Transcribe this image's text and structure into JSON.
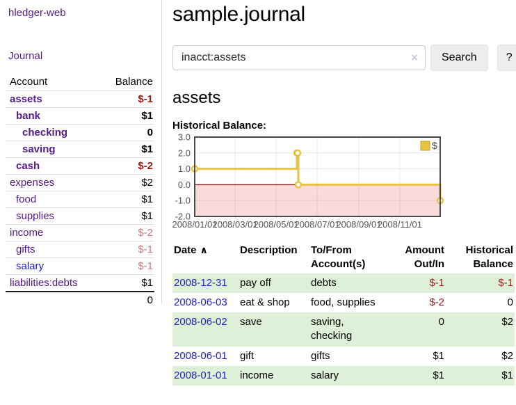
{
  "colors": {
    "purple": "#551a8b",
    "blue": "#2222cc",
    "red": "#9b1b1b",
    "muted_red": "#c47a7a",
    "row_green": "#dff0d8",
    "gold": "#e8c33f",
    "chart_border": "#4a4a4a",
    "axis": "#545454",
    "zero_line": "#8b1f1f",
    "negative_region": "#f9dbdb"
  },
  "app_title": "hledger-web",
  "sidebar": {
    "journal_link": "Journal",
    "accounts": {
      "col_account": "Account",
      "col_balance": "Balance",
      "rows": [
        {
          "name": "assets",
          "indent": 0,
          "bold": true,
          "balance": "$-1",
          "negative": true
        },
        {
          "name": "bank",
          "indent": 1,
          "bold": true,
          "balance": "$1",
          "negative": false
        },
        {
          "name": "checking",
          "indent": 2,
          "bold": true,
          "balance": "0",
          "negative": false
        },
        {
          "name": "saving",
          "indent": 2,
          "bold": true,
          "balance": "$1",
          "negative": false
        },
        {
          "name": "cash",
          "indent": 1,
          "bold": true,
          "balance": "$-2",
          "negative": true
        },
        {
          "name": "expenses",
          "indent": 0,
          "bold": false,
          "balance": "$2",
          "negative": false
        },
        {
          "name": "food",
          "indent": 1,
          "bold": false,
          "balance": "$1",
          "negative": false
        },
        {
          "name": "supplies",
          "indent": 1,
          "bold": false,
          "balance": "$1",
          "negative": false
        },
        {
          "name": "income",
          "indent": 0,
          "bold": false,
          "balance": "$-2",
          "negative": true
        },
        {
          "name": "gifts",
          "indent": 1,
          "bold": false,
          "balance": "$-1",
          "negative": true
        },
        {
          "name": "salary",
          "indent": 1,
          "bold": false,
          "balance": "$-1",
          "negative": true,
          "unvisited": true
        },
        {
          "name": "liabilities:debts",
          "indent": 0,
          "bold": false,
          "balance": "$1",
          "negative": false
        }
      ],
      "total": "0"
    }
  },
  "main": {
    "title": "sample.journal",
    "search": {
      "value": "inacct:assets",
      "clear_icon": "×",
      "button_label": "Search",
      "help_label": "?"
    },
    "account_heading": "assets",
    "chart_label": "Historical Balance:",
    "register": {
      "headers": [
        "Date",
        "Description",
        "To/From Account(s)",
        "Amount Out/In",
        "Historical Balance"
      ],
      "sort_icon": "∧",
      "rows": [
        {
          "date": "2008-12-31",
          "description": "pay off",
          "accounts": "debts",
          "amount": "$-1",
          "amount_neg": true,
          "balance": "$-1",
          "balance_neg": true
        },
        {
          "date": "2008-06-03",
          "description": "eat & shop",
          "accounts": "food, supplies",
          "amount": "$-2",
          "amount_neg": true,
          "balance": "0",
          "balance_neg": false
        },
        {
          "date": "2008-06-02",
          "description": "save",
          "accounts": "saving, checking",
          "amount": "0",
          "amount_neg": false,
          "balance": "$2",
          "balance_neg": false
        },
        {
          "date": "2008-06-01",
          "description": "gift",
          "accounts": "gifts",
          "amount": "$1",
          "amount_neg": false,
          "balance": "$2",
          "balance_neg": false
        },
        {
          "date": "2008-01-01",
          "description": "income",
          "accounts": "salary",
          "amount": "$1",
          "amount_neg": false,
          "balance": "$1",
          "balance_neg": false
        }
      ]
    }
  },
  "chart_data": {
    "type": "line",
    "title": "Historical Balance",
    "legend": "$",
    "step": true,
    "negative_region_shaded": true,
    "ylim": [
      -2,
      3
    ],
    "x_range_days": 365,
    "y_ticks": [
      3.0,
      2.0,
      1.0,
      0.0,
      -1.0,
      -2.0
    ],
    "x_ticks": [
      {
        "label": "2008/01/01",
        "day": 0
      },
      {
        "label": "2008/03/01",
        "day": 60
      },
      {
        "label": "2008/05/01",
        "day": 121
      },
      {
        "label": "2008/07/01",
        "day": 182
      },
      {
        "label": "2008/09/01",
        "day": 244
      },
      {
        "label": "2008/11/01",
        "day": 305
      }
    ],
    "points": [
      {
        "date": "2008-01-01",
        "day": 0,
        "value": 1
      },
      {
        "date": "2008-06-01",
        "day": 152,
        "value": 2
      },
      {
        "date": "2008-06-02",
        "day": 153,
        "value": 2
      },
      {
        "date": "2008-06-03",
        "day": 154,
        "value": 0
      },
      {
        "date": "2008-12-31",
        "day": 365,
        "value": -1
      }
    ]
  }
}
